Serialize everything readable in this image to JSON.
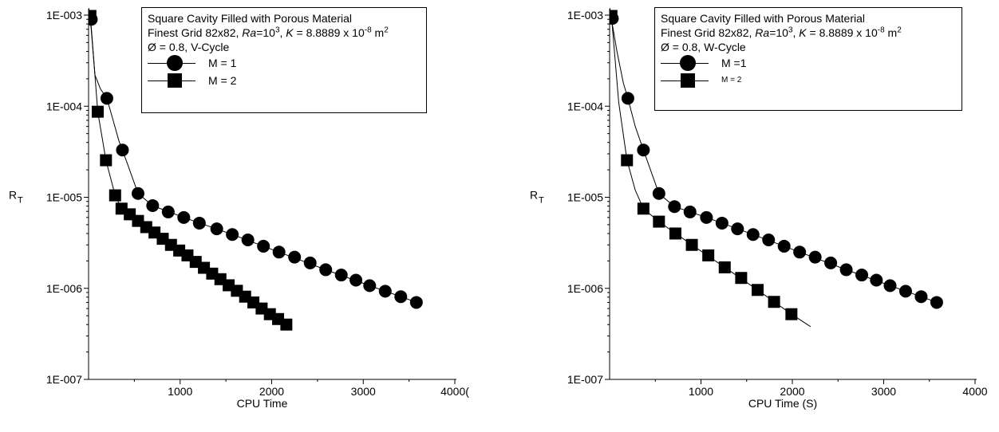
{
  "chart_data": [
    {
      "type": "line",
      "y_scale": "log",
      "ylim": [
        1e-07,
        0.001
      ],
      "xlim": [
        0,
        4000
      ],
      "xlabel": "CPU Time",
      "ylabel_main": "R",
      "ylabel_sub": "T",
      "x_ticks": [
        {
          "v": 1000,
          "label": "1000"
        },
        {
          "v": 2000,
          "label": "2000"
        },
        {
          "v": 3000,
          "label": "3000"
        },
        {
          "v": 4000,
          "label": "4000("
        }
      ],
      "y_ticks": [
        {
          "v": 0.001,
          "label": "1E-003"
        },
        {
          "v": 0.0001,
          "label": "1E-004"
        },
        {
          "v": 1e-05,
          "label": "1E-005"
        },
        {
          "v": 1e-06,
          "label": "1E-006"
        },
        {
          "v": 1e-07,
          "label": "1E-007"
        }
      ],
      "legend": {
        "line1": "Square Cavity Filled with Porous Material",
        "grid_text": "Finest Grid 82x82, ",
        "ra_italic": "Ra",
        "ra_eq": "=10",
        "ra_exp": "3",
        "k_sep": ", ",
        "k_italic": "K",
        "k_eq": " = 8.8889 x 10",
        "k_exp": "-8",
        "k_unit": " m",
        "k_unit_exp": "2",
        "phi_line": "Ø  = 0.8,  V-Cycle",
        "placement": "top-right"
      },
      "series": [
        {
          "name": "M = 1",
          "marker": "circle",
          "points": [
            [
              30,
              0.0009
            ],
            [
              200,
              0.000122
            ],
            [
              370,
              3.3e-05
            ],
            [
              540,
              1.1e-05
            ],
            [
              700,
              8.1e-06
            ],
            [
              870,
              6.9e-06
            ],
            [
              1040,
              6e-06
            ],
            [
              1210,
              5.2e-06
            ],
            [
              1400,
              4.5e-06
            ],
            [
              1570,
              3.9e-06
            ],
            [
              1740,
              3.4e-06
            ],
            [
              1910,
              2.9e-06
            ],
            [
              2080,
              2.5e-06
            ],
            [
              2250,
              2.2e-06
            ],
            [
              2420,
              1.9e-06
            ],
            [
              2590,
              1.6e-06
            ],
            [
              2760,
              1.4e-06
            ],
            [
              2920,
              1.23e-06
            ],
            [
              3070,
              1.07e-06
            ],
            [
              3240,
              9.3e-07
            ],
            [
              3410,
              8.1e-07
            ],
            [
              3580,
              7e-07
            ]
          ],
          "line": [
            [
              0,
              0.0012
            ],
            [
              20,
              0.0009
            ],
            [
              70,
              0.00022
            ],
            [
              130,
              0.000155
            ],
            [
              200,
              0.000122
            ],
            [
              260,
              7.5e-05
            ],
            [
              330,
              4.2e-05
            ],
            [
              420,
              2.4e-05
            ],
            [
              540,
              1.1e-05
            ],
            [
              700,
              8.1e-06
            ],
            [
              1040,
              6e-06
            ],
            [
              1570,
              3.9e-06
            ],
            [
              2080,
              2.5e-06
            ],
            [
              2590,
              1.6e-06
            ],
            [
              3070,
              1.07e-06
            ],
            [
              3410,
              8.1e-07
            ],
            [
              3620,
              6.8e-07
            ]
          ]
        },
        {
          "name": "M = 2",
          "marker": "square",
          "points": [
            [
              20,
              0.00098
            ],
            [
              100,
              8.7e-05
            ],
            [
              190,
              2.55e-05
            ],
            [
              290,
              1.05e-05
            ],
            [
              360,
              7.5e-06
            ],
            [
              450,
              6.5e-06
            ],
            [
              540,
              5.5e-06
            ],
            [
              630,
              4.7e-06
            ],
            [
              720,
              4.1e-06
            ],
            [
              810,
              3.5e-06
            ],
            [
              900,
              3e-06
            ],
            [
              990,
              2.6e-06
            ],
            [
              1080,
              2.3e-06
            ],
            [
              1170,
              1.95e-06
            ],
            [
              1260,
              1.68e-06
            ],
            [
              1350,
              1.45e-06
            ],
            [
              1440,
              1.26e-06
            ],
            [
              1530,
              1.08e-06
            ],
            [
              1620,
              9.4e-07
            ],
            [
              1710,
              8.1e-07
            ],
            [
              1800,
              7e-07
            ],
            [
              1890,
              6e-07
            ],
            [
              1980,
              5.2e-07
            ],
            [
              2070,
              4.6e-07
            ],
            [
              2160,
              4e-07
            ]
          ],
          "line": [
            [
              0,
              0.0012
            ],
            [
              20,
              0.00098
            ],
            [
              100,
              8.7e-05
            ],
            [
              190,
              2.55e-05
            ],
            [
              290,
              1.05e-05
            ],
            [
              360,
              7.5e-06
            ],
            [
              720,
              4.1e-06
            ],
            [
              1080,
              2.3e-06
            ],
            [
              1440,
              1.26e-06
            ],
            [
              1800,
              7e-07
            ],
            [
              2070,
              4.6e-07
            ],
            [
              2200,
              4.2e-07
            ]
          ]
        }
      ]
    },
    {
      "type": "line",
      "y_scale": "log",
      "ylim": [
        1e-07,
        0.001
      ],
      "xlim": [
        0,
        4000
      ],
      "xlabel": "CPU Time (S)",
      "ylabel_main": "R",
      "ylabel_sub": "T",
      "x_ticks": [
        {
          "v": 1000,
          "label": "1000"
        },
        {
          "v": 2000,
          "label": "2000"
        },
        {
          "v": 3000,
          "label": "3000"
        },
        {
          "v": 4000,
          "label": "4000"
        }
      ],
      "y_ticks": [
        {
          "v": 0.001,
          "label": "1E-003"
        },
        {
          "v": 0.0001,
          "label": "1E-004"
        },
        {
          "v": 1e-05,
          "label": "1E-005"
        },
        {
          "v": 1e-06,
          "label": "1E-006"
        },
        {
          "v": 1e-07,
          "label": "1E-007"
        }
      ],
      "legend": {
        "line1": "Square Cavity Filled with Porous Material",
        "grid_text": "Finest Grid 82x82, ",
        "ra_italic": "Ra",
        "ra_eq": "=10",
        "ra_exp": "3",
        "k_sep": ", ",
        "k_italic": "K",
        "k_eq": " = 8.8889 x 10",
        "k_exp": "-8",
        "k_unit": " m",
        "k_unit_exp": "2",
        "phi_line": "Ø  = 0.8,  W-Cycle",
        "placement": "top-right"
      },
      "series": [
        {
          "name": "M =1",
          "marker": "circle",
          "points": [
            [
              30,
              0.00092
            ],
            [
              200,
              0.000122
            ],
            [
              370,
              3.3e-05
            ],
            [
              540,
              1.1e-05
            ],
            [
              710,
              7.9e-06
            ],
            [
              880,
              6.9e-06
            ],
            [
              1060,
              6e-06
            ],
            [
              1230,
              5.2e-06
            ],
            [
              1400,
              4.5e-06
            ],
            [
              1570,
              3.9e-06
            ],
            [
              1740,
              3.4e-06
            ],
            [
              1910,
              2.9e-06
            ],
            [
              2080,
              2.5e-06
            ],
            [
              2250,
              2.2e-06
            ],
            [
              2420,
              1.9e-06
            ],
            [
              2590,
              1.6e-06
            ],
            [
              2760,
              1.4e-06
            ],
            [
              2920,
              1.23e-06
            ],
            [
              3070,
              1.07e-06
            ],
            [
              3240,
              9.3e-07
            ],
            [
              3410,
              8.1e-07
            ],
            [
              3580,
              7e-07
            ]
          ],
          "line": [
            [
              0,
              0.0012
            ],
            [
              20,
              0.0009
            ],
            [
              80,
              0.0004
            ],
            [
              150,
              0.00018
            ],
            [
              200,
              0.000122
            ],
            [
              280,
              6e-05
            ],
            [
              370,
              3.3e-05
            ],
            [
              540,
              1.1e-05
            ],
            [
              710,
              7.9e-06
            ],
            [
              1060,
              6e-06
            ],
            [
              1570,
              3.9e-06
            ],
            [
              2080,
              2.5e-06
            ],
            [
              2590,
              1.6e-06
            ],
            [
              3070,
              1.07e-06
            ],
            [
              3410,
              8.1e-07
            ],
            [
              3620,
              6.8e-07
            ]
          ]
        },
        {
          "name": "M = 2",
          "marker": "square",
          "points": [
            [
              20,
              0.00098
            ],
            [
              190,
              2.55e-05
            ],
            [
              370,
              7.5e-06
            ],
            [
              540,
              5.4e-06
            ],
            [
              720,
              4e-06
            ],
            [
              900,
              3e-06
            ],
            [
              1080,
              2.3e-06
            ],
            [
              1260,
              1.7e-06
            ],
            [
              1440,
              1.3e-06
            ],
            [
              1620,
              9.6e-07
            ],
            [
              1800,
              7.1e-07
            ],
            [
              1990,
              5.2e-07
            ]
          ],
          "line": [
            [
              0,
              0.0012
            ],
            [
              20,
              0.00098
            ],
            [
              100,
              0.00011
            ],
            [
              190,
              2.55e-05
            ],
            [
              280,
              1.2e-05
            ],
            [
              370,
              7.5e-06
            ],
            [
              540,
              5.4e-06
            ],
            [
              900,
              3e-06
            ],
            [
              1260,
              1.7e-06
            ],
            [
              1620,
              9.6e-07
            ],
            [
              1990,
              5.2e-07
            ],
            [
              2200,
              3.8e-07
            ]
          ]
        }
      ]
    }
  ]
}
